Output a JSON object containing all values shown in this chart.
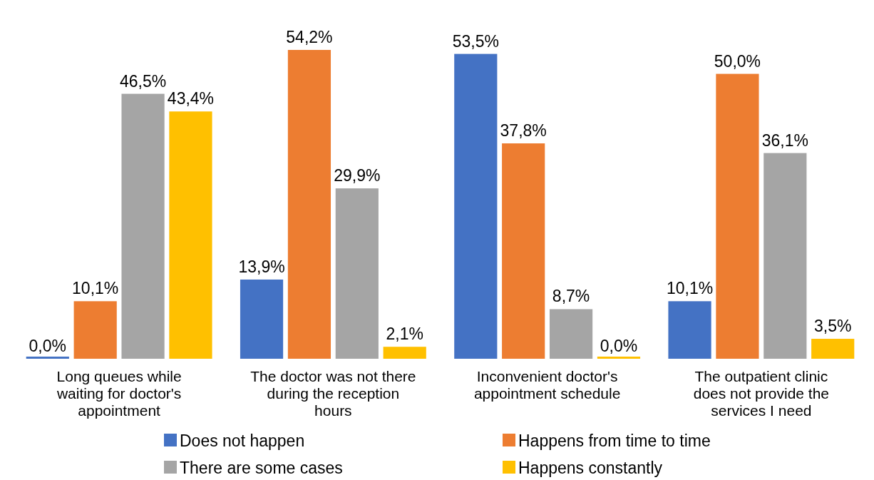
{
  "chart_data": {
    "type": "bar",
    "categories": [
      "Long queues while waiting for doctor's appointment",
      "The doctor was not there during the reception hours",
      "Inconvenient doctor's appointment schedule",
      "The outpatient clinic does not provide the services I need"
    ],
    "series": [
      {
        "name": "Does not happen",
        "color": "#4472c4",
        "values": [
          0,
          13.9,
          53.5,
          10.1
        ],
        "value_labels": [
          "0,0%",
          "13,9%",
          "53,5%",
          "10,1%"
        ]
      },
      {
        "name": "Happens from time to time",
        "color": "#ed7d31",
        "values": [
          10.1,
          54.2,
          37.8,
          50.0
        ],
        "value_labels": [
          "10,1%",
          "54,2%",
          "37,8%",
          "50,0%"
        ]
      },
      {
        "name": "There are some cases",
        "color": "#a5a5a5",
        "values": [
          46.5,
          29.9,
          8.7,
          36.1
        ],
        "value_labels": [
          "46,5%",
          "29,9%",
          "8,7%",
          "36,1%"
        ]
      },
      {
        "name": "Happens constantly",
        "color": "#ffc000",
        "values": [
          43.4,
          2.1,
          0,
          3.5
        ],
        "value_labels": [
          "43,4%",
          "2,1%",
          "0,0%",
          "3,5%"
        ]
      }
    ],
    "legend": "bottom",
    "grid": false
  }
}
